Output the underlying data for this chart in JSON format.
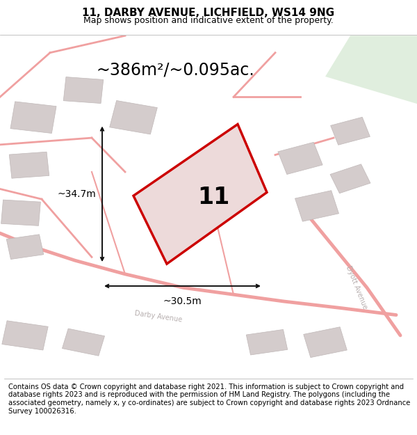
{
  "title_line1": "11, DARBY AVENUE, LICHFIELD, WS14 9NG",
  "title_line2": "Map shows position and indicative extent of the property.",
  "footer_text": "Contains OS data © Crown copyright and database right 2021. This information is subject to Crown copyright and database rights 2023 and is reproduced with the permission of HM Land Registry. The polygons (including the associated geometry, namely x, y co-ordinates) are subject to Crown copyright and database rights 2023 Ordnance Survey 100026316.",
  "area_label": "~386m²/~0.095ac.",
  "width_label": "~30.5m",
  "height_label": "~34.7m",
  "plot_number": "11",
  "map_bg": "#f5f0f0",
  "road_color": "#f0a0a0",
  "building_color": "#d4cccc",
  "building_edge": "#c0b8b8",
  "plot_fill": "#eddada",
  "plot_edge": "#cc0000",
  "dim_color": "#111111",
  "green_color": "#d4e8d0",
  "title_fontsize": 11,
  "subtitle_fontsize": 9,
  "footer_fontsize": 7.2,
  "area_fontsize": 17,
  "dim_label_fontsize": 10,
  "plot_num_fontsize": 24,
  "road_label_color": "#b8b0b0",
  "road_label_fontsize": 7
}
